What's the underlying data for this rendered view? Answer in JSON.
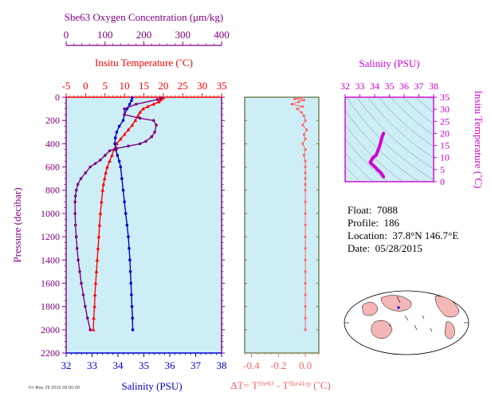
{
  "info": {
    "float_label": "Float:",
    "float_value": "7088",
    "profile_label": "Profile:",
    "profile_value": "186",
    "location_label": "Location:",
    "location_value": "37.8°N  146.7°E",
    "date_label": "Date:",
    "date_value": "05/28/2015"
  },
  "footer_text": "Fri May 29 2015 09:00:00",
  "colors": {
    "background": "#cdeef7",
    "temperature": "#ff0000",
    "salinity": "#0000d0",
    "oxygen": "#800080",
    "delta_t": "#ff6666",
    "ts_axes": "#d000d0",
    "panel_border": "#556b2f"
  },
  "chart_data": [
    {
      "type": "line",
      "name": "profile",
      "ylabel": "Pressure (decibar)",
      "ylim": [
        0,
        2200
      ],
      "y_inverted": true,
      "y_ticks": [
        0,
        200,
        400,
        600,
        800,
        1000,
        1200,
        1400,
        1600,
        1800,
        2000,
        2200
      ],
      "axes": {
        "oxygen": {
          "label": "Sbe63 Oxygen Concentration (μm/kg)",
          "lim": [
            0,
            400
          ],
          "ticks": [
            0,
            100,
            200,
            300,
            400
          ]
        },
        "temperature": {
          "label": "Insitu Temperature (˚C)",
          "lim": [
            -5,
            35
          ],
          "ticks": [
            -5,
            0,
            5,
            10,
            15,
            20,
            25,
            30,
            35
          ]
        },
        "salinity": {
          "label": "Salinity (PSU)",
          "lim": [
            32,
            38
          ],
          "ticks": [
            32,
            33,
            34,
            35,
            36,
            37,
            38
          ]
        }
      },
      "series": [
        {
          "key": "temperature",
          "points": [
            [
              20.0,
              5
            ],
            [
              19.5,
              15
            ],
            [
              19.2,
              25
            ],
            [
              18.8,
              40
            ],
            [
              17.5,
              60
            ],
            [
              16.0,
              80
            ],
            [
              14.8,
              100
            ],
            [
              14.0,
              130
            ],
            [
              13.5,
              160
            ],
            [
              12.8,
              200
            ],
            [
              12.0,
              240
            ],
            [
              11.0,
              280
            ],
            [
              10.0,
              320
            ],
            [
              9.0,
              360
            ],
            [
              8.0,
              400
            ],
            [
              7.3,
              450
            ],
            [
              6.8,
              500
            ],
            [
              6.2,
              550
            ],
            [
              5.6,
              600
            ],
            [
              5.2,
              650
            ],
            [
              4.9,
              700
            ],
            [
              4.6,
              750
            ],
            [
              4.4,
              800
            ],
            [
              4.1,
              900
            ],
            [
              3.8,
              1000
            ],
            [
              3.6,
              1100
            ],
            [
              3.4,
              1200
            ],
            [
              3.2,
              1300
            ],
            [
              3.0,
              1400
            ],
            [
              2.8,
              1500
            ],
            [
              2.6,
              1600
            ],
            [
              2.4,
              1700
            ],
            [
              2.3,
              1800
            ],
            [
              2.1,
              1900
            ],
            [
              2.0,
              2000
            ]
          ]
        },
        {
          "key": "salinity",
          "points": [
            [
              34.55,
              5
            ],
            [
              34.52,
              30
            ],
            [
              34.45,
              60
            ],
            [
              34.35,
              100
            ],
            [
              34.25,
              150
            ],
            [
              34.2,
              200
            ],
            [
              34.05,
              250
            ],
            [
              33.95,
              300
            ],
            [
              33.9,
              350
            ],
            [
              33.88,
              400
            ],
            [
              33.92,
              450
            ],
            [
              33.98,
              500
            ],
            [
              34.05,
              550
            ],
            [
              34.1,
              600
            ],
            [
              34.15,
              700
            ],
            [
              34.2,
              800
            ],
            [
              34.25,
              900
            ],
            [
              34.3,
              1000
            ],
            [
              34.35,
              1100
            ],
            [
              34.4,
              1200
            ],
            [
              34.43,
              1300
            ],
            [
              34.46,
              1400
            ],
            [
              34.48,
              1500
            ],
            [
              34.5,
              1600
            ],
            [
              34.52,
              1700
            ],
            [
              34.54,
              1800
            ],
            [
              34.56,
              1900
            ],
            [
              34.57,
              2000
            ]
          ]
        },
        {
          "key": "oxygen",
          "points": [
            [
              245,
              5
            ],
            [
              235,
              20
            ],
            [
              180,
              60
            ],
            [
              150,
              100
            ],
            [
              150,
              150
            ],
            [
              190,
              180
            ],
            [
              225,
              200
            ],
            [
              232,
              240
            ],
            [
              228,
              300
            ],
            [
              220,
              340
            ],
            [
              205,
              380
            ],
            [
              190,
              400
            ],
            [
              160,
              420
            ],
            [
              130,
              440
            ],
            [
              112,
              460
            ],
            [
              100,
              500
            ],
            [
              88,
              540
            ],
            [
              75,
              570
            ],
            [
              62,
              600
            ],
            [
              50,
              650
            ],
            [
              38,
              700
            ],
            [
              30,
              750
            ],
            [
              26,
              800
            ],
            [
              24,
              850
            ],
            [
              23,
              900
            ],
            [
              23,
              1000
            ],
            [
              24,
              1100
            ],
            [
              26,
              1200
            ],
            [
              28,
              1300
            ],
            [
              31,
              1400
            ],
            [
              35,
              1500
            ],
            [
              39,
              1600
            ],
            [
              44,
              1700
            ],
            [
              49,
              1800
            ],
            [
              55,
              1900
            ],
            [
              62,
              2000
            ]
          ]
        }
      ]
    },
    {
      "type": "line",
      "name": "delta_t",
      "xlabel": "ΔT= T",
      "xlabel_sup1": "Sbe63",
      "xlabel_mid": " - T",
      "xlabel_sup2": "Sbe41cp",
      "xlabel_tail": " (˚C)",
      "xlim": [
        -0.45,
        0.1
      ],
      "x_ticks": [
        -0.4,
        -0.2,
        0.0
      ],
      "x_tick_labels": [
        "-0.4",
        "-0.2",
        "0.0"
      ],
      "ylim": [
        0,
        2200
      ],
      "points": [
        [
          -0.03,
          5
        ],
        [
          -0.08,
          15
        ],
        [
          -0.01,
          25
        ],
        [
          -0.05,
          40
        ],
        [
          -0.1,
          60
        ],
        [
          -0.02,
          80
        ],
        [
          -0.06,
          100
        ],
        [
          -0.03,
          130
        ],
        [
          -0.01,
          160
        ],
        [
          0.0,
          200
        ],
        [
          -0.02,
          240
        ],
        [
          0.01,
          280
        ],
        [
          -0.01,
          320
        ],
        [
          0.0,
          360
        ],
        [
          -0.02,
          400
        ],
        [
          0.0,
          450
        ],
        [
          -0.01,
          500
        ],
        [
          0.0,
          550
        ],
        [
          0.0,
          600
        ],
        [
          0.0,
          650
        ],
        [
          0.0,
          700
        ],
        [
          0.0,
          750
        ],
        [
          0.0,
          800
        ],
        [
          0.0,
          900
        ],
        [
          0.0,
          1000
        ],
        [
          0.0,
          1100
        ],
        [
          0.0,
          1200
        ],
        [
          0.0,
          1300
        ],
        [
          0.0,
          1400
        ],
        [
          0.0,
          1500
        ],
        [
          0.0,
          1600
        ],
        [
          0.0,
          1700
        ],
        [
          0.0,
          1800
        ],
        [
          0.0,
          1900
        ],
        [
          0.0,
          2000
        ]
      ]
    },
    {
      "type": "scatter",
      "name": "ts_diagram",
      "title": "Salinity (PSU)",
      "ylabel": "Insitu Temperature (˚C)",
      "xlim": [
        32,
        38
      ],
      "x_ticks": [
        32,
        33,
        34,
        35,
        36,
        37,
        38
      ],
      "ylim": [
        0,
        35
      ],
      "y_ticks": [
        0,
        5,
        10,
        15,
        20,
        25,
        30,
        35
      ],
      "points": [
        [
          34.6,
          20.0
        ],
        [
          34.5,
          18.5
        ],
        [
          34.4,
          16.0
        ],
        [
          34.3,
          14.0
        ],
        [
          34.2,
          12.5
        ],
        [
          34.1,
          11.0
        ],
        [
          33.9,
          10.0
        ],
        [
          33.8,
          9.0
        ],
        [
          33.7,
          8.0
        ],
        [
          33.8,
          7.3
        ],
        [
          33.9,
          6.8
        ],
        [
          34.0,
          6.2
        ],
        [
          34.1,
          5.6
        ],
        [
          34.2,
          4.9
        ],
        [
          34.3,
          4.4
        ],
        [
          34.4,
          3.8
        ],
        [
          34.5,
          3.0
        ],
        [
          34.6,
          2.0
        ]
      ]
    }
  ]
}
